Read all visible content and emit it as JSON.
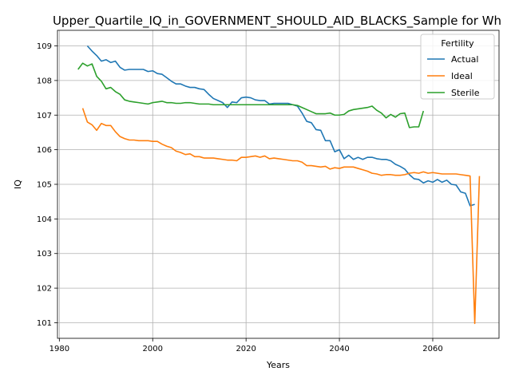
{
  "chart_data": {
    "type": "line",
    "title": "Upper_Quartile_IQ_in_GOVERNMENT_SHOULD_AID_BLACKS_Sample for Wh",
    "xlabel": "Years",
    "ylabel": "IQ",
    "xlim": [
      1979.6,
      2074.2
    ],
    "ylim": [
      100.55,
      109.45
    ],
    "xticks": [
      1980,
      2000,
      2020,
      2040,
      2060
    ],
    "yticks": [
      101,
      102,
      103,
      104,
      105,
      106,
      107,
      108,
      109
    ],
    "grid": true,
    "legend": {
      "title": "Fertility",
      "position": "top-right"
    },
    "series": [
      {
        "name": "Actual",
        "color": "#1f77b4",
        "points": [
          [
            1986,
            109.0
          ],
          [
            1987,
            108.85
          ],
          [
            1988,
            108.72
          ],
          [
            1989,
            108.56
          ],
          [
            1990,
            108.6
          ],
          [
            1991,
            108.52
          ],
          [
            1992,
            108.56
          ],
          [
            1993,
            108.38
          ],
          [
            1994,
            108.3
          ],
          [
            1995,
            108.32
          ],
          [
            1996,
            108.32
          ],
          [
            1997,
            108.32
          ],
          [
            1998,
            108.32
          ],
          [
            1999,
            108.26
          ],
          [
            2000,
            108.28
          ],
          [
            2001,
            108.2
          ],
          [
            2002,
            108.18
          ],
          [
            2003,
            108.08
          ],
          [
            2004,
            107.98
          ],
          [
            2005,
            107.9
          ],
          [
            2006,
            107.9
          ],
          [
            2007,
            107.84
          ],
          [
            2008,
            107.8
          ],
          [
            2009,
            107.8
          ],
          [
            2010,
            107.76
          ],
          [
            2011,
            107.74
          ],
          [
            2012,
            107.6
          ],
          [
            2013,
            107.48
          ],
          [
            2014,
            107.42
          ],
          [
            2015,
            107.36
          ],
          [
            2016,
            107.22
          ],
          [
            2017,
            107.38
          ],
          [
            2018,
            107.36
          ],
          [
            2019,
            107.5
          ],
          [
            2020,
            107.52
          ],
          [
            2021,
            107.5
          ],
          [
            2022,
            107.44
          ],
          [
            2023,
            107.42
          ],
          [
            2024,
            107.42
          ],
          [
            2025,
            107.32
          ],
          [
            2026,
            107.34
          ],
          [
            2027,
            107.34
          ],
          [
            2028,
            107.34
          ],
          [
            2029,
            107.34
          ],
          [
            2030,
            107.3
          ],
          [
            2031,
            107.26
          ],
          [
            2032,
            107.06
          ],
          [
            2033,
            106.82
          ],
          [
            2034,
            106.78
          ],
          [
            2035,
            106.58
          ],
          [
            2036,
            106.56
          ],
          [
            2037,
            106.26
          ],
          [
            2038,
            106.26
          ],
          [
            2039,
            105.94
          ],
          [
            2040,
            106.0
          ],
          [
            2041,
            105.74
          ],
          [
            2042,
            105.84
          ],
          [
            2043,
            105.72
          ],
          [
            2044,
            105.78
          ],
          [
            2045,
            105.72
          ],
          [
            2046,
            105.78
          ],
          [
            2047,
            105.78
          ],
          [
            2048,
            105.74
          ],
          [
            2049,
            105.72
          ],
          [
            2050,
            105.72
          ],
          [
            2051,
            105.68
          ],
          [
            2052,
            105.58
          ],
          [
            2053,
            105.52
          ],
          [
            2054,
            105.44
          ],
          [
            2055,
            105.28
          ],
          [
            2056,
            105.16
          ],
          [
            2057,
            105.14
          ],
          [
            2058,
            105.04
          ],
          [
            2059,
            105.1
          ],
          [
            2060,
            105.06
          ],
          [
            2061,
            105.14
          ],
          [
            2062,
            105.06
          ],
          [
            2063,
            105.12
          ],
          [
            2064,
            105.0
          ],
          [
            2065,
            104.98
          ],
          [
            2066,
            104.78
          ],
          [
            2067,
            104.74
          ],
          [
            2068,
            104.38
          ],
          [
            2069,
            104.42
          ]
        ]
      },
      {
        "name": "Ideal",
        "color": "#ff7f0e",
        "points": [
          [
            1985,
            107.2
          ],
          [
            1986,
            106.8
          ],
          [
            1987,
            106.72
          ],
          [
            1988,
            106.56
          ],
          [
            1989,
            106.76
          ],
          [
            1990,
            106.7
          ],
          [
            1991,
            106.7
          ],
          [
            1992,
            106.52
          ],
          [
            1993,
            106.38
          ],
          [
            1994,
            106.32
          ],
          [
            1995,
            106.28
          ],
          [
            1996,
            106.28
          ],
          [
            1997,
            106.26
          ],
          [
            1998,
            106.26
          ],
          [
            1999,
            106.26
          ],
          [
            2000,
            106.24
          ],
          [
            2001,
            106.24
          ],
          [
            2002,
            106.16
          ],
          [
            2003,
            106.1
          ],
          [
            2004,
            106.06
          ],
          [
            2005,
            105.96
          ],
          [
            2006,
            105.92
          ],
          [
            2007,
            105.86
          ],
          [
            2008,
            105.88
          ],
          [
            2009,
            105.8
          ],
          [
            2010,
            105.8
          ],
          [
            2011,
            105.76
          ],
          [
            2012,
            105.76
          ],
          [
            2013,
            105.76
          ],
          [
            2014,
            105.74
          ],
          [
            2015,
            105.72
          ],
          [
            2016,
            105.7
          ],
          [
            2017,
            105.7
          ],
          [
            2018,
            105.68
          ],
          [
            2019,
            105.78
          ],
          [
            2020,
            105.78
          ],
          [
            2021,
            105.8
          ],
          [
            2022,
            105.82
          ],
          [
            2023,
            105.78
          ],
          [
            2024,
            105.82
          ],
          [
            2025,
            105.74
          ],
          [
            2026,
            105.76
          ],
          [
            2027,
            105.74
          ],
          [
            2028,
            105.72
          ],
          [
            2029,
            105.7
          ],
          [
            2030,
            105.68
          ],
          [
            2031,
            105.68
          ],
          [
            2032,
            105.64
          ],
          [
            2033,
            105.54
          ],
          [
            2034,
            105.54
          ],
          [
            2035,
            105.52
          ],
          [
            2036,
            105.5
          ],
          [
            2037,
            105.52
          ],
          [
            2038,
            105.44
          ],
          [
            2039,
            105.48
          ],
          [
            2040,
            105.46
          ],
          [
            2041,
            105.5
          ],
          [
            2042,
            105.5
          ],
          [
            2043,
            105.5
          ],
          [
            2044,
            105.46
          ],
          [
            2045,
            105.42
          ],
          [
            2046,
            105.38
          ],
          [
            2047,
            105.32
          ],
          [
            2048,
            105.3
          ],
          [
            2049,
            105.26
          ],
          [
            2050,
            105.28
          ],
          [
            2051,
            105.28
          ],
          [
            2052,
            105.26
          ],
          [
            2053,
            105.26
          ],
          [
            2054,
            105.28
          ],
          [
            2055,
            105.32
          ],
          [
            2056,
            105.34
          ],
          [
            2057,
            105.32
          ],
          [
            2058,
            105.36
          ],
          [
            2059,
            105.32
          ],
          [
            2060,
            105.34
          ],
          [
            2061,
            105.32
          ],
          [
            2062,
            105.3
          ],
          [
            2063,
            105.3
          ],
          [
            2064,
            105.3
          ],
          [
            2065,
            105.3
          ],
          [
            2066,
            105.28
          ],
          [
            2067,
            105.26
          ],
          [
            2068,
            105.24
          ],
          [
            2069,
            100.98
          ],
          [
            2070,
            105.24
          ]
        ]
      },
      {
        "name": "Sterile",
        "color": "#2ca02c",
        "points": [
          [
            1984,
            108.32
          ],
          [
            1985,
            108.5
          ],
          [
            1986,
            108.42
          ],
          [
            1987,
            108.48
          ],
          [
            1988,
            108.12
          ],
          [
            1989,
            107.98
          ],
          [
            1990,
            107.76
          ],
          [
            1991,
            107.8
          ],
          [
            1992,
            107.68
          ],
          [
            1993,
            107.6
          ],
          [
            1994,
            107.44
          ],
          [
            1995,
            107.4
          ],
          [
            1996,
            107.38
          ],
          [
            1997,
            107.36
          ],
          [
            1998,
            107.34
          ],
          [
            1999,
            107.32
          ],
          [
            2000,
            107.36
          ],
          [
            2001,
            107.38
          ],
          [
            2002,
            107.4
          ],
          [
            2003,
            107.36
          ],
          [
            2004,
            107.36
          ],
          [
            2005,
            107.34
          ],
          [
            2006,
            107.34
          ],
          [
            2007,
            107.36
          ],
          [
            2008,
            107.36
          ],
          [
            2009,
            107.34
          ],
          [
            2010,
            107.32
          ],
          [
            2011,
            107.32
          ],
          [
            2012,
            107.32
          ],
          [
            2013,
            107.3
          ],
          [
            2014,
            107.3
          ],
          [
            2015,
            107.3
          ],
          [
            2016,
            107.3
          ],
          [
            2017,
            107.3
          ],
          [
            2018,
            107.3
          ],
          [
            2019,
            107.3
          ],
          [
            2020,
            107.3
          ],
          [
            2021,
            107.3
          ],
          [
            2022,
            107.3
          ],
          [
            2023,
            107.3
          ],
          [
            2024,
            107.3
          ],
          [
            2025,
            107.3
          ],
          [
            2026,
            107.3
          ],
          [
            2027,
            107.3
          ],
          [
            2028,
            107.3
          ],
          [
            2029,
            107.3
          ],
          [
            2030,
            107.3
          ],
          [
            2031,
            107.28
          ],
          [
            2032,
            107.22
          ],
          [
            2033,
            107.16
          ],
          [
            2034,
            107.1
          ],
          [
            2035,
            107.04
          ],
          [
            2036,
            107.04
          ],
          [
            2037,
            107.04
          ],
          [
            2038,
            107.06
          ],
          [
            2039,
            107.0
          ],
          [
            2040,
            107.0
          ],
          [
            2041,
            107.02
          ],
          [
            2042,
            107.12
          ],
          [
            2043,
            107.16
          ],
          [
            2044,
            107.18
          ],
          [
            2045,
            107.2
          ],
          [
            2046,
            107.22
          ],
          [
            2047,
            107.26
          ],
          [
            2048,
            107.14
          ],
          [
            2049,
            107.06
          ],
          [
            2050,
            106.92
          ],
          [
            2051,
            107.02
          ],
          [
            2052,
            106.94
          ],
          [
            2053,
            107.04
          ],
          [
            2054,
            107.06
          ],
          [
            2055,
            106.64
          ],
          [
            2056,
            106.66
          ],
          [
            2057,
            106.66
          ],
          [
            2058,
            107.12
          ]
        ]
      }
    ]
  }
}
